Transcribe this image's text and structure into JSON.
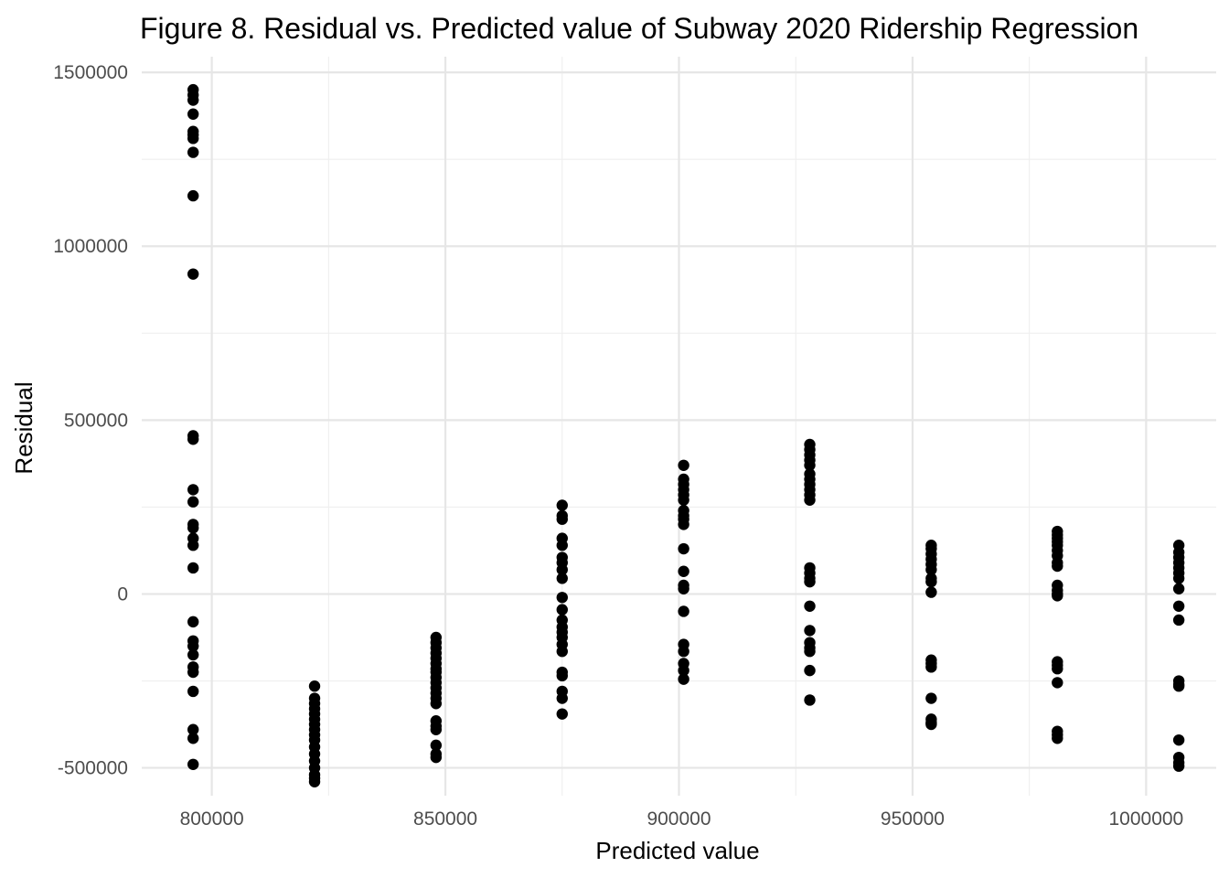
{
  "chart_data": {
    "type": "scatter",
    "title": "Figure 8. Residual vs. Predicted value of Subway 2020 Ridership Regression",
    "xlabel": "Predicted value",
    "ylabel": "Residual",
    "xlim": [
      785000,
      1015000
    ],
    "ylim": [
      -580000,
      1545000
    ],
    "xticks": [
      800000,
      850000,
      900000,
      950000,
      1000000
    ],
    "xtick_labels": [
      "800000",
      "850000",
      "900000",
      "950000",
      "1000000"
    ],
    "yticks": [
      -500000,
      0,
      500000,
      1000000,
      1500000
    ],
    "ytick_labels": [
      "-500000",
      "0",
      "500000",
      "1000000",
      "1500000"
    ],
    "grid": true,
    "legend": "none",
    "point_color": "#000000",
    "series": [
      {
        "groups": [
          {
            "x": 796000,
            "y": [
              1450000,
              1435000,
              1420000,
              1380000,
              1330000,
              1320000,
              1310000,
              1270000,
              1145000,
              920000,
              455000,
              445000,
              300000,
              265000,
              200000,
              190000,
              160000,
              140000,
              75000,
              -80000,
              -135000,
              -150000,
              -175000,
              -210000,
              -225000,
              -280000,
              -390000,
              -415000,
              -490000
            ]
          },
          {
            "x": 822000,
            "y": [
              -265000,
              -300000,
              -315000,
              -330000,
              -345000,
              -360000,
              -375000,
              -390000,
              -405000,
              -420000,
              -440000,
              -460000,
              -480000,
              -500000,
              -520000,
              -530000,
              -540000
            ]
          },
          {
            "x": 848000,
            "y": [
              -125000,
              -140000,
              -155000,
              -170000,
              -185000,
              -200000,
              -215000,
              -225000,
              -240000,
              -255000,
              -270000,
              -285000,
              -300000,
              -315000,
              -365000,
              -380000,
              -390000,
              -435000,
              -460000,
              -470000
            ]
          },
          {
            "x": 875000,
            "y": [
              255000,
              225000,
              215000,
              160000,
              140000,
              105000,
              90000,
              70000,
              45000,
              -10000,
              -45000,
              -75000,
              -95000,
              -110000,
              -125000,
              -145000,
              -165000,
              -225000,
              -235000,
              -280000,
              -300000,
              -345000
            ]
          },
          {
            "x": 901000,
            "y": [
              370000,
              330000,
              315000,
              300000,
              285000,
              270000,
              240000,
              225000,
              215000,
              200000,
              130000,
              65000,
              25000,
              15000,
              -50000,
              -145000,
              -165000,
              -200000,
              -220000,
              -245000
            ]
          },
          {
            "x": 928000,
            "y": [
              430000,
              415000,
              400000,
              385000,
              370000,
              345000,
              330000,
              315000,
              300000,
              285000,
              270000,
              75000,
              60000,
              45000,
              35000,
              -35000,
              -105000,
              -140000,
              -155000,
              -165000,
              -220000,
              -305000
            ]
          },
          {
            "x": 954000,
            "y": [
              140000,
              130000,
              115000,
              100000,
              85000,
              70000,
              45000,
              35000,
              5000,
              -190000,
              -200000,
              -210000,
              -300000,
              -360000,
              -370000,
              -375000
            ]
          },
          {
            "x": 981000,
            "y": [
              180000,
              170000,
              160000,
              150000,
              140000,
              125000,
              110000,
              90000,
              80000,
              25000,
              10000,
              0,
              -5000,
              -195000,
              -205000,
              -215000,
              -255000,
              -395000,
              -405000,
              -415000
            ]
          },
          {
            "x": 1007000,
            "y": [
              140000,
              120000,
              105000,
              90000,
              75000,
              60000,
              45000,
              15000,
              -35000,
              -75000,
              -250000,
              -260000,
              -265000,
              -420000,
              -470000,
              -485000,
              -495000
            ]
          }
        ]
      }
    ]
  }
}
